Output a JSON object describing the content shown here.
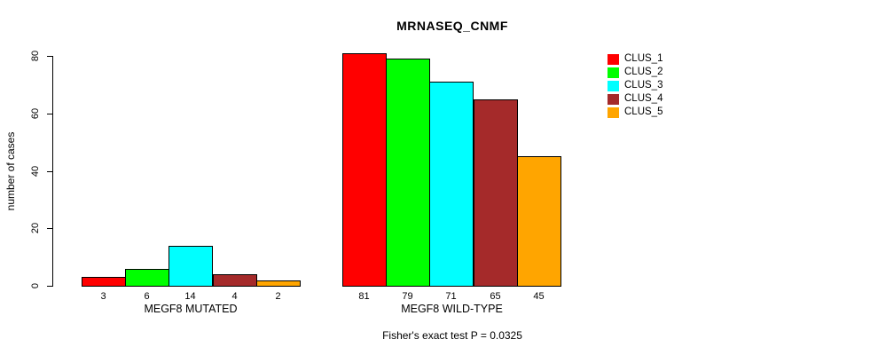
{
  "chart_data": {
    "type": "bar",
    "title": "MRNASEQ_CNMF",
    "ylabel": "number of cases",
    "xlabel": "",
    "ylim": [
      0,
      80
    ],
    "yticks": [
      0,
      20,
      40,
      60,
      80
    ],
    "grid": false,
    "legend_position": "right",
    "bar_value_labels_shown": true,
    "categories": [
      "MEGF8 MUTATED",
      "MEGF8 WILD-TYPE"
    ],
    "groups": [
      {
        "label": "MEGF8 MUTATED",
        "values": [
          3,
          6,
          14,
          4,
          2
        ]
      },
      {
        "label": "MEGF8 WILD-TYPE",
        "values": [
          81,
          79,
          71,
          65,
          45
        ]
      }
    ],
    "series": [
      {
        "name": "CLUS_1",
        "color": "#FF0000"
      },
      {
        "name": "CLUS_2",
        "color": "#00FF00"
      },
      {
        "name": "CLUS_3",
        "color": "#00FFFF"
      },
      {
        "name": "CLUS_4",
        "color": "#A52A2A"
      },
      {
        "name": "CLUS_5",
        "color": "#FFA500"
      }
    ],
    "caption": "Fisher's exact test P = 0.0325",
    "axis_color": "#000000",
    "background_color": "#FFFFFF"
  }
}
